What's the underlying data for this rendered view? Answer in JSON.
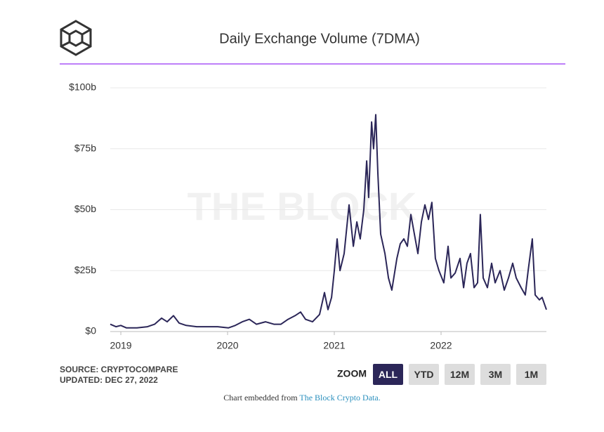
{
  "chart_data": {
    "type": "line",
    "title": "Daily Exchange Volume (7DMA)",
    "watermark": "THE BLOCK",
    "color": "#2b2658",
    "x": [
      2018.901,
      2018.954,
      2019.0,
      2019.053,
      2019.151,
      2019.25,
      2019.316,
      2019.382,
      2019.434,
      2019.493,
      2019.546,
      2019.612,
      2019.711,
      2019.809,
      2019.908,
      2020.007,
      2020.072,
      2020.138,
      2020.204,
      2020.27,
      2020.355,
      2020.434,
      2020.5,
      2020.566,
      2020.632,
      2020.684,
      2020.73,
      2020.796,
      2020.862,
      2020.908,
      2020.941,
      2020.974,
      2021.0,
      2021.026,
      2021.053,
      2021.092,
      2021.138,
      2021.178,
      2021.211,
      2021.243,
      2021.276,
      2021.303,
      2021.322,
      2021.349,
      2021.368,
      2021.388,
      2021.408,
      2021.434,
      2021.474,
      2021.507,
      2021.539,
      2021.586,
      2021.618,
      2021.651,
      2021.684,
      2021.717,
      2021.75,
      2021.783,
      2021.816,
      2021.849,
      2021.882,
      2021.914,
      2021.947,
      2021.98,
      2022.026,
      2022.066,
      2022.092,
      2022.132,
      2022.178,
      2022.211,
      2022.243,
      2022.276,
      2022.309,
      2022.342,
      2022.368,
      2022.395,
      2022.434,
      2022.474,
      2022.507,
      2022.553,
      2022.592,
      2022.632,
      2022.671,
      2022.704,
      2022.75,
      2022.789,
      2022.816,
      2022.855,
      2022.882,
      2022.921,
      2022.947,
      2022.987
    ],
    "values": [
      3,
      2,
      2.5,
      1.5,
      1.5,
      2,
      3,
      5.5,
      4,
      6.5,
      3.5,
      2.5,
      2,
      2,
      2,
      1.5,
      2.5,
      4,
      5,
      3,
      4,
      3,
      3,
      5,
      6.5,
      8,
      5,
      4,
      7,
      16,
      9,
      14,
      25,
      38,
      25,
      32,
      52,
      35,
      45,
      38,
      50,
      70,
      55,
      86,
      75,
      89,
      65,
      40,
      32,
      22,
      17,
      30,
      36,
      38,
      35,
      48,
      40,
      32,
      45,
      52,
      46,
      53,
      30,
      25,
      20,
      35,
      22,
      24,
      30,
      18,
      28,
      32,
      18,
      20,
      48,
      22,
      18,
      28,
      20,
      25,
      17,
      22,
      28,
      22,
      18,
      15,
      25,
      38,
      15,
      13,
      14,
      9
    ],
    "xlim": [
      2018.901,
      2022.987
    ],
    "xticks": [
      2019,
      2020,
      2021,
      2022
    ],
    "ylim": [
      0,
      100
    ],
    "yticks": [
      {
        "value": 0,
        "label": "$0"
      },
      {
        "value": 25,
        "label": "$25b"
      },
      {
        "value": 50,
        "label": "$50b"
      },
      {
        "value": 75,
        "label": "$75b"
      },
      {
        "value": 100,
        "label": "$100b"
      }
    ],
    "grid": true
  },
  "source": "SOURCE: CRYPTOCOMPARE",
  "updated": "UPDATED: DEC 27, 2022",
  "zoom": {
    "label": "ZOOM",
    "buttons": [
      "ALL",
      "YTD",
      "12M",
      "3M",
      "1M"
    ],
    "active": 0
  },
  "footer": {
    "text": "Chart embedded from",
    "link": "The Block Crypto Data."
  }
}
